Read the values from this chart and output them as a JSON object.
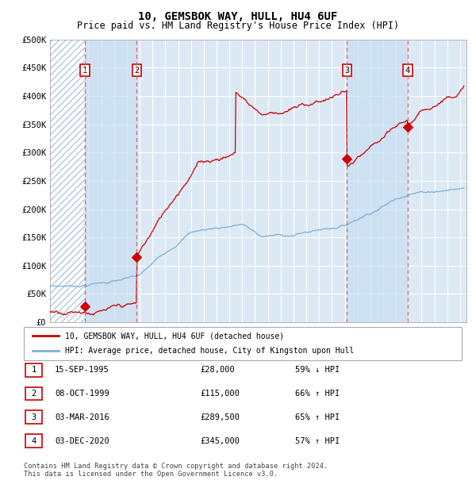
{
  "title": "10, GEMSBOK WAY, HULL, HU4 6UF",
  "subtitle": "Price paid vs. HM Land Registry's House Price Index (HPI)",
  "ylim": [
    0,
    500000
  ],
  "yticks": [
    0,
    50000,
    100000,
    150000,
    200000,
    250000,
    300000,
    350000,
    400000,
    450000,
    500000
  ],
  "ytick_labels": [
    "£0",
    "£50K",
    "£100K",
    "£150K",
    "£200K",
    "£250K",
    "£300K",
    "£350K",
    "£400K",
    "£450K",
    "£500K"
  ],
  "background_color": "#ffffff",
  "plot_bg_color": "#dce9f5",
  "grid_color": "#ffffff",
  "red_line_color": "#cc0000",
  "blue_line_color": "#7bafd4",
  "marker_color": "#cc0000",
  "dashed_line_color": "#e06060",
  "sale_dates_year": [
    1995.71,
    1999.77,
    2016.17,
    2020.92
  ],
  "sale_prices": [
    28000,
    115000,
    289500,
    345000
  ],
  "sale_labels": [
    "1",
    "2",
    "3",
    "4"
  ],
  "xmin": 1993,
  "xmax": 2025.5,
  "legend_red": "10, GEMSBOK WAY, HULL, HU4 6UF (detached house)",
  "legend_blue": "HPI: Average price, detached house, City of Kingston upon Hull",
  "table_rows": [
    [
      "1",
      "15-SEP-1995",
      "£28,000",
      "59% ↓ HPI"
    ],
    [
      "2",
      "08-OCT-1999",
      "£115,000",
      "66% ↑ HPI"
    ],
    [
      "3",
      "03-MAR-2016",
      "£289,500",
      "65% ↑ HPI"
    ],
    [
      "4",
      "03-DEC-2020",
      "£345,000",
      "57% ↑ HPI"
    ]
  ],
  "footnote": "Contains HM Land Registry data © Crown copyright and database right 2024.\nThis data is licensed under the Open Government Licence v3.0."
}
